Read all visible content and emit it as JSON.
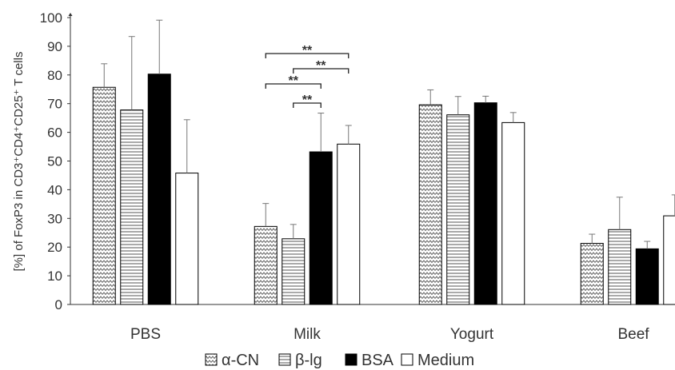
{
  "chart_data": {
    "type": "bar",
    "ylabel": "[%] of FoxP3 in CD3⁺CD4⁺CD25⁺ T cells",
    "xlabel": "",
    "ylim": [
      0,
      100
    ],
    "yticks": [
      0,
      10,
      20,
      30,
      40,
      50,
      60,
      70,
      80,
      90,
      100
    ],
    "grid": false,
    "legend_position": "bottom",
    "categories": [
      "PBS",
      "Milk",
      "Yogurt",
      "Beef"
    ],
    "series": [
      {
        "name": "α-CN",
        "pattern": "zigzag",
        "color": "#ffffff",
        "values": [
          75.7,
          27.2,
          69.6,
          21.3
        ],
        "errors": [
          8.2,
          8.0,
          5.2,
          3.2
        ]
      },
      {
        "name": "β-lg",
        "pattern": "hlines",
        "color": "#ffffff",
        "values": [
          67.8,
          22.9,
          66.1,
          26.1
        ],
        "errors": [
          25.6,
          5.0,
          6.4,
          11.3
        ]
      },
      {
        "name": "BSA",
        "pattern": "solid",
        "color": "#000000",
        "values": [
          80.3,
          53.2,
          70.3,
          19.4
        ],
        "errors": [
          18.8,
          13.5,
          2.3,
          2.6
        ]
      },
      {
        "name": "Medium",
        "pattern": "none",
        "color": "#ffffff",
        "values": [
          45.8,
          55.9,
          63.4,
          30.9
        ],
        "errors": [
          18.6,
          6.5,
          3.5,
          7.3
        ]
      }
    ],
    "annotations": [
      {
        "category": "Milk",
        "from_series": 0,
        "to_series": 3,
        "label": "**"
      },
      {
        "category": "Milk",
        "from_series": 1,
        "to_series": 3,
        "label": "**"
      },
      {
        "category": "Milk",
        "from_series": 0,
        "to_series": 2,
        "label": "**"
      },
      {
        "category": "Milk",
        "from_series": 1,
        "to_series": 2,
        "label": "**"
      }
    ]
  }
}
